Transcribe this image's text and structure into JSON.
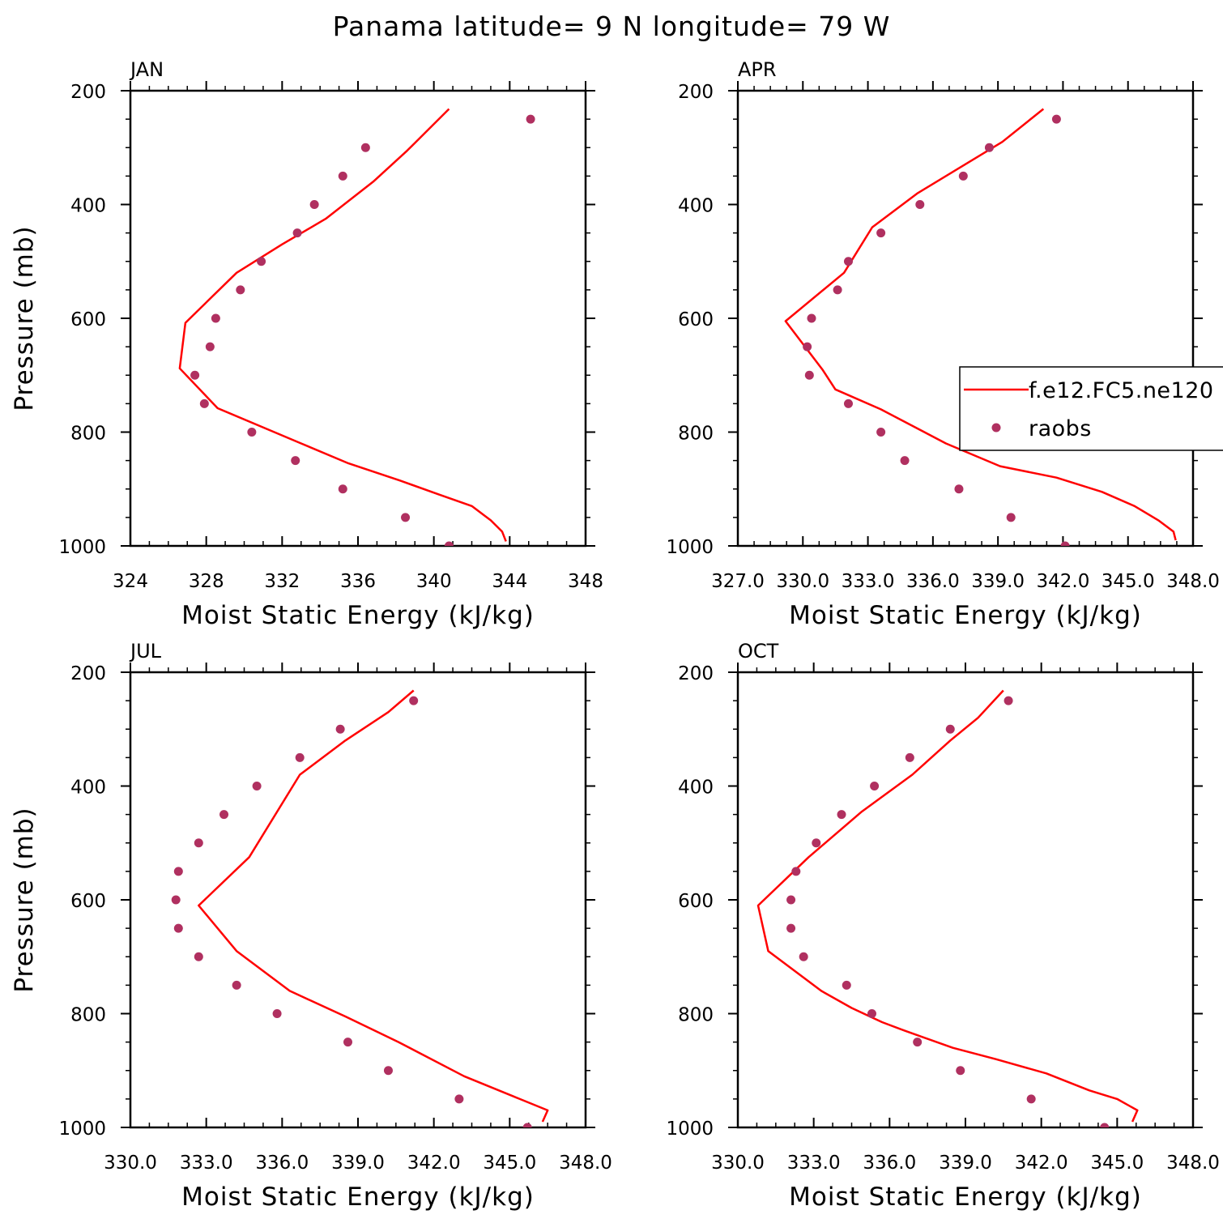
{
  "title": "Panama  latitude= 9 N longitude= 79 W",
  "colors": {
    "model_line": "#ff0000",
    "raobs_marker": "#b03060",
    "axes": "#000000"
  },
  "legend": {
    "entries": [
      "f.e12.FC5.ne120",
      "raobs"
    ],
    "placement": "right edge of APR panel"
  },
  "chart_data": [
    {
      "type": "line",
      "panel": "JAN",
      "xlabel": "Moist Static Energy (kJ/kg)",
      "ylabel": "Pressure (mb)",
      "xlim": [
        324,
        348
      ],
      "ylim": [
        1000,
        200
      ],
      "xtick_labels": [
        "324",
        "328",
        "332",
        "336",
        "340",
        "344",
        "348"
      ],
      "ytick_labels": [
        "200",
        "400",
        "600",
        "800",
        "1000"
      ],
      "series": [
        {
          "name": "f.e12.FC5.ne120",
          "kind": "line",
          "x": [
            343.8,
            343.6,
            343.0,
            342.0,
            340.3,
            338.2,
            335.5,
            333.0,
            328.6,
            326.6,
            326.9,
            329.6,
            332.0,
            334.3,
            336.8,
            338.6,
            340.8
          ],
          "y": [
            992,
            975,
            955,
            930,
            910,
            885,
            855,
            820,
            758,
            688,
            608,
            520,
            470,
            425,
            360,
            305,
            232
          ]
        },
        {
          "name": "raobs",
          "kind": "scatter",
          "x": [
            340.8,
            338.5,
            335.2,
            332.7,
            330.4,
            327.9,
            327.4,
            328.2,
            328.5,
            329.8,
            330.9,
            332.8,
            333.7,
            335.2,
            336.4,
            345.1
          ],
          "y": [
            1000,
            950,
            900,
            850,
            800,
            750,
            700,
            650,
            600,
            550,
            500,
            450,
            400,
            350,
            300,
            250
          ]
        }
      ]
    },
    {
      "type": "line",
      "panel": "APR",
      "xlabel": "Moist Static Energy (kJ/kg)",
      "ylabel": "",
      "xlim": [
        327.0,
        348.0
      ],
      "ylim": [
        1000,
        200
      ],
      "xtick_labels": [
        "327.0",
        "330.0",
        "333.0",
        "336.0",
        "339.0",
        "342.0",
        "345.0",
        "348.0"
      ],
      "ytick_labels": [
        "200",
        "400",
        "600",
        "800",
        "1000"
      ],
      "series": [
        {
          "name": "f.e12.FC5.ne120",
          "kind": "line",
          "x": [
            347.2,
            347.1,
            346.4,
            345.3,
            343.8,
            341.7,
            339.1,
            336.6,
            333.6,
            331.5,
            330.9,
            329.2,
            331.9,
            333.2,
            335.3,
            339.2,
            341.1
          ],
          "y": [
            990,
            975,
            955,
            930,
            905,
            880,
            860,
            820,
            760,
            725,
            690,
            605,
            520,
            440,
            380,
            290,
            232
          ]
        },
        {
          "name": "raobs",
          "kind": "scatter",
          "x": [
            342.1,
            339.6,
            337.2,
            334.7,
            333.6,
            332.1,
            330.3,
            330.2,
            330.4,
            331.6,
            332.1,
            333.6,
            335.4,
            337.4,
            338.6,
            341.7
          ],
          "y": [
            1000,
            950,
            900,
            850,
            800,
            750,
            700,
            650,
            600,
            550,
            500,
            450,
            400,
            350,
            300,
            250
          ]
        }
      ]
    },
    {
      "type": "line",
      "panel": "JUL",
      "xlabel": "Moist Static Energy (kJ/kg)",
      "ylabel": "Pressure (mb)",
      "xlim": [
        330.0,
        348.0
      ],
      "ylim": [
        1000,
        200
      ],
      "xtick_labels": [
        "330.0",
        "333.0",
        "336.0",
        "339.0",
        "342.0",
        "345.0",
        "348.0"
      ],
      "ytick_labels": [
        "200",
        "400",
        "600",
        "800",
        "1000"
      ],
      "series": [
        {
          "name": "f.e12.FC5.ne120",
          "kind": "line",
          "x": [
            346.3,
            346.5,
            345.4,
            343.2,
            340.6,
            338.5,
            336.3,
            334.2,
            332.7,
            334.7,
            336.7,
            338.5,
            340.2,
            341.2
          ],
          "y": [
            990,
            970,
            950,
            910,
            850,
            805,
            760,
            690,
            610,
            525,
            380,
            320,
            270,
            232
          ]
        },
        {
          "name": "raobs",
          "kind": "scatter",
          "x": [
            345.7,
            343.0,
            340.2,
            338.6,
            335.8,
            334.2,
            332.7,
            331.9,
            331.8,
            331.9,
            332.7,
            333.7,
            335.0,
            336.7,
            338.3,
            341.2
          ],
          "y": [
            1000,
            950,
            900,
            850,
            800,
            750,
            700,
            650,
            600,
            550,
            500,
            450,
            400,
            350,
            300,
            250
          ]
        }
      ]
    },
    {
      "type": "line",
      "panel": "OCT",
      "xlabel": "Moist Static Energy (kJ/kg)",
      "ylabel": "",
      "xlim": [
        330.0,
        348.0
      ],
      "ylim": [
        1000,
        200
      ],
      "xtick_labels": [
        "330.0",
        "333.0",
        "336.0",
        "339.0",
        "342.0",
        "345.0",
        "348.0"
      ],
      "ytick_labels": [
        "200",
        "400",
        "600",
        "800",
        "1000"
      ],
      "series": [
        {
          "name": "f.e12.FC5.ne120",
          "kind": "line",
          "x": [
            345.6,
            345.8,
            345.0,
            343.9,
            342.2,
            340.2,
            338.5,
            336.6,
            335.7,
            334.5,
            333.3,
            331.2,
            330.8,
            332.8,
            334.9,
            336.9,
            338.4,
            339.5,
            340.5
          ],
          "y": [
            990,
            970,
            950,
            935,
            905,
            880,
            860,
            830,
            815,
            790,
            760,
            690,
            610,
            525,
            445,
            380,
            320,
            280,
            232
          ]
        },
        {
          "name": "raobs",
          "kind": "scatter",
          "x": [
            344.5,
            341.6,
            338.8,
            337.1,
            335.3,
            334.3,
            332.6,
            332.1,
            332.1,
            332.3,
            333.1,
            334.1,
            335.4,
            336.8,
            338.4,
            340.7
          ],
          "y": [
            1000,
            950,
            900,
            850,
            800,
            750,
            700,
            650,
            600,
            550,
            500,
            450,
            400,
            350,
            300,
            250
          ]
        }
      ]
    }
  ]
}
